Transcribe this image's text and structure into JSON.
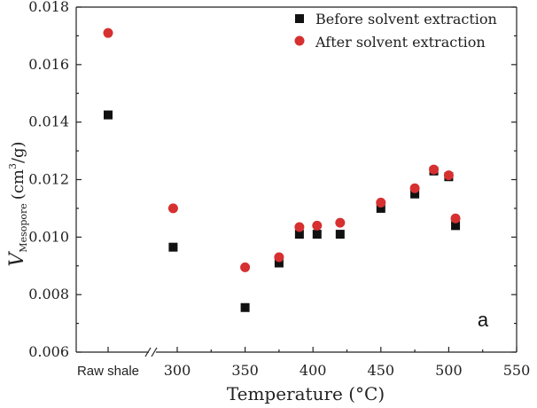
{
  "chart_data": {
    "type": "scatter",
    "xlabel": "Temperature (°C)",
    "ylabel": {
      "symbol": "V",
      "subscript": "Mesopore",
      "unit_prefix": "(cm",
      "unit_sup": "3",
      "unit_suffix": "/g)"
    },
    "panel_label": "a",
    "raw_label": "Raw shale",
    "xlim": [
      280,
      550
    ],
    "ylim": [
      0.006,
      0.018
    ],
    "x_ticks": [
      300,
      350,
      400,
      450,
      500,
      550
    ],
    "x_tick_labels": [
      "300",
      "350",
      "400",
      "450",
      "500",
      "550"
    ],
    "y_ticks": [
      0.006,
      0.008,
      0.01,
      0.012,
      0.014,
      0.016,
      0.018
    ],
    "y_tick_labels": [
      "0.006",
      "0.008",
      "0.010",
      "0.012",
      "0.014",
      "0.016",
      "0.018"
    ],
    "legend_position": "top-right",
    "series": [
      {
        "name": "Before solvent extraction",
        "marker": "square",
        "color": "#111111",
        "raw_value": 0.01425,
        "points": [
          {
            "x": 297,
            "y": 0.00965
          },
          {
            "x": 350,
            "y": 0.00755
          },
          {
            "x": 375,
            "y": 0.0091
          },
          {
            "x": 390,
            "y": 0.0101
          },
          {
            "x": 403,
            "y": 0.0101
          },
          {
            "x": 420,
            "y": 0.0101
          },
          {
            "x": 450,
            "y": 0.011
          },
          {
            "x": 475,
            "y": 0.0115
          },
          {
            "x": 489,
            "y": 0.0123
          },
          {
            "x": 500,
            "y": 0.0121
          },
          {
            "x": 505,
            "y": 0.0104
          }
        ]
      },
      {
        "name": "After solvent extraction",
        "marker": "circle",
        "color": "#d63030",
        "raw_value": 0.0171,
        "points": [
          {
            "x": 297,
            "y": 0.011
          },
          {
            "x": 350,
            "y": 0.00895
          },
          {
            "x": 375,
            "y": 0.0093
          },
          {
            "x": 390,
            "y": 0.01035
          },
          {
            "x": 403,
            "y": 0.0104
          },
          {
            "x": 420,
            "y": 0.0105
          },
          {
            "x": 450,
            "y": 0.0112
          },
          {
            "x": 475,
            "y": 0.0117
          },
          {
            "x": 489,
            "y": 0.01235
          },
          {
            "x": 500,
            "y": 0.01215
          },
          {
            "x": 505,
            "y": 0.01065
          }
        ]
      }
    ]
  }
}
